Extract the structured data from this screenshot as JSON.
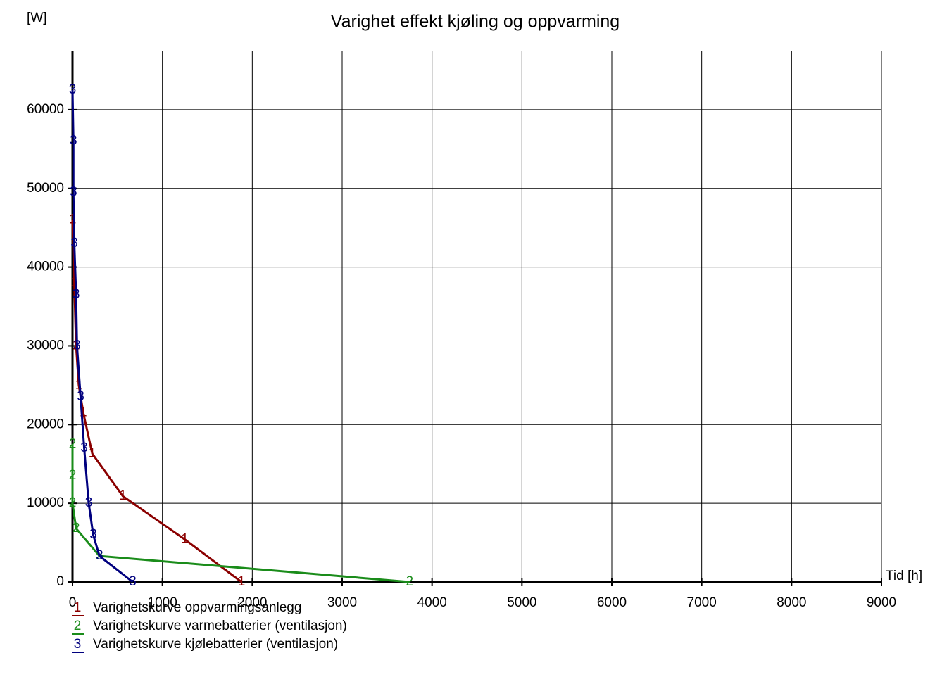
{
  "chart_data": {
    "type": "line",
    "title": "Varighet effekt kjøling og oppvarming",
    "y_label": "[W]",
    "x_label": "Tid [h]",
    "xlim": [
      0,
      9000
    ],
    "xticks": [
      0,
      1000,
      2000,
      3000,
      4000,
      5000,
      6000,
      7000,
      8000,
      9000
    ],
    "ylim": [
      0,
      67500
    ],
    "yticks": [
      0,
      10000,
      20000,
      30000,
      40000,
      50000,
      60000
    ],
    "grid": true,
    "series": [
      {
        "name": "Varighetskurve oppvarmingsanlegg",
        "marker": "1",
        "color": "#8b0000",
        "x": [
          0,
          20,
          40,
          70,
          120,
          220,
          560,
          1250,
          1880
        ],
        "values": [
          46000,
          38000,
          30000,
          25000,
          21500,
          16300,
          10900,
          5400,
          0
        ]
      },
      {
        "name": "Varighetskurve varmebatterier (ventilasjon)",
        "marker": "2",
        "color": "#1a8c1a",
        "x": [
          0,
          0,
          0,
          40,
          300,
          3750
        ],
        "values": [
          17500,
          13500,
          10000,
          6800,
          3300,
          0
        ]
      },
      {
        "name": "Varighetskurve kjølebatterier (ventilasjon)",
        "marker": "3",
        "color": "#00007f",
        "x": [
          0,
          10,
          10,
          20,
          40,
          50,
          90,
          130,
          180,
          230,
          300,
          670
        ],
        "values": [
          62500,
          56000,
          49500,
          43000,
          36500,
          30000,
          23500,
          17000,
          10000,
          6000,
          3300,
          0
        ]
      }
    ]
  }
}
